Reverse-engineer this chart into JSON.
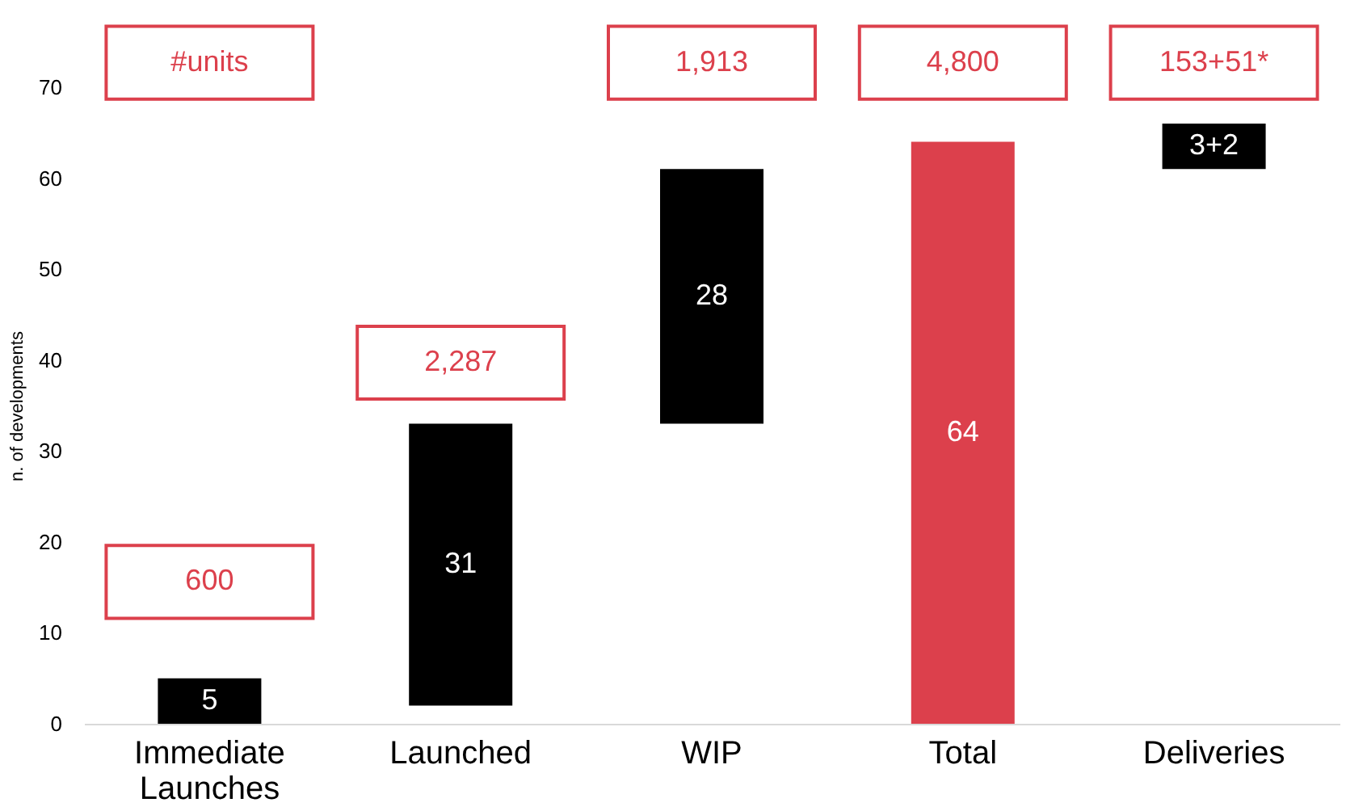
{
  "chart_data": {
    "type": "bar",
    "ylabel": "n. of developments",
    "categories": [
      "Immediate Launches",
      "Launched",
      "WIP",
      "Total",
      "Deliveries"
    ],
    "values": [
      5,
      31,
      28,
      64,
      5
    ],
    "base": [
      0,
      2,
      33,
      0,
      61
    ],
    "colors": [
      "#000000",
      "#000000",
      "#000000",
      "#dc404c",
      "#000000"
    ],
    "value_labels": [
      "5",
      "31",
      "28",
      "64",
      null
    ],
    "ylim": [
      0,
      70
    ],
    "yticks": [
      0,
      10,
      20,
      30,
      40,
      50,
      60,
      70
    ],
    "grid": false,
    "annotations": [
      "#units",
      "600",
      "2,287",
      "1,913",
      "4,800",
      "153+51*",
      "3+2"
    ]
  }
}
